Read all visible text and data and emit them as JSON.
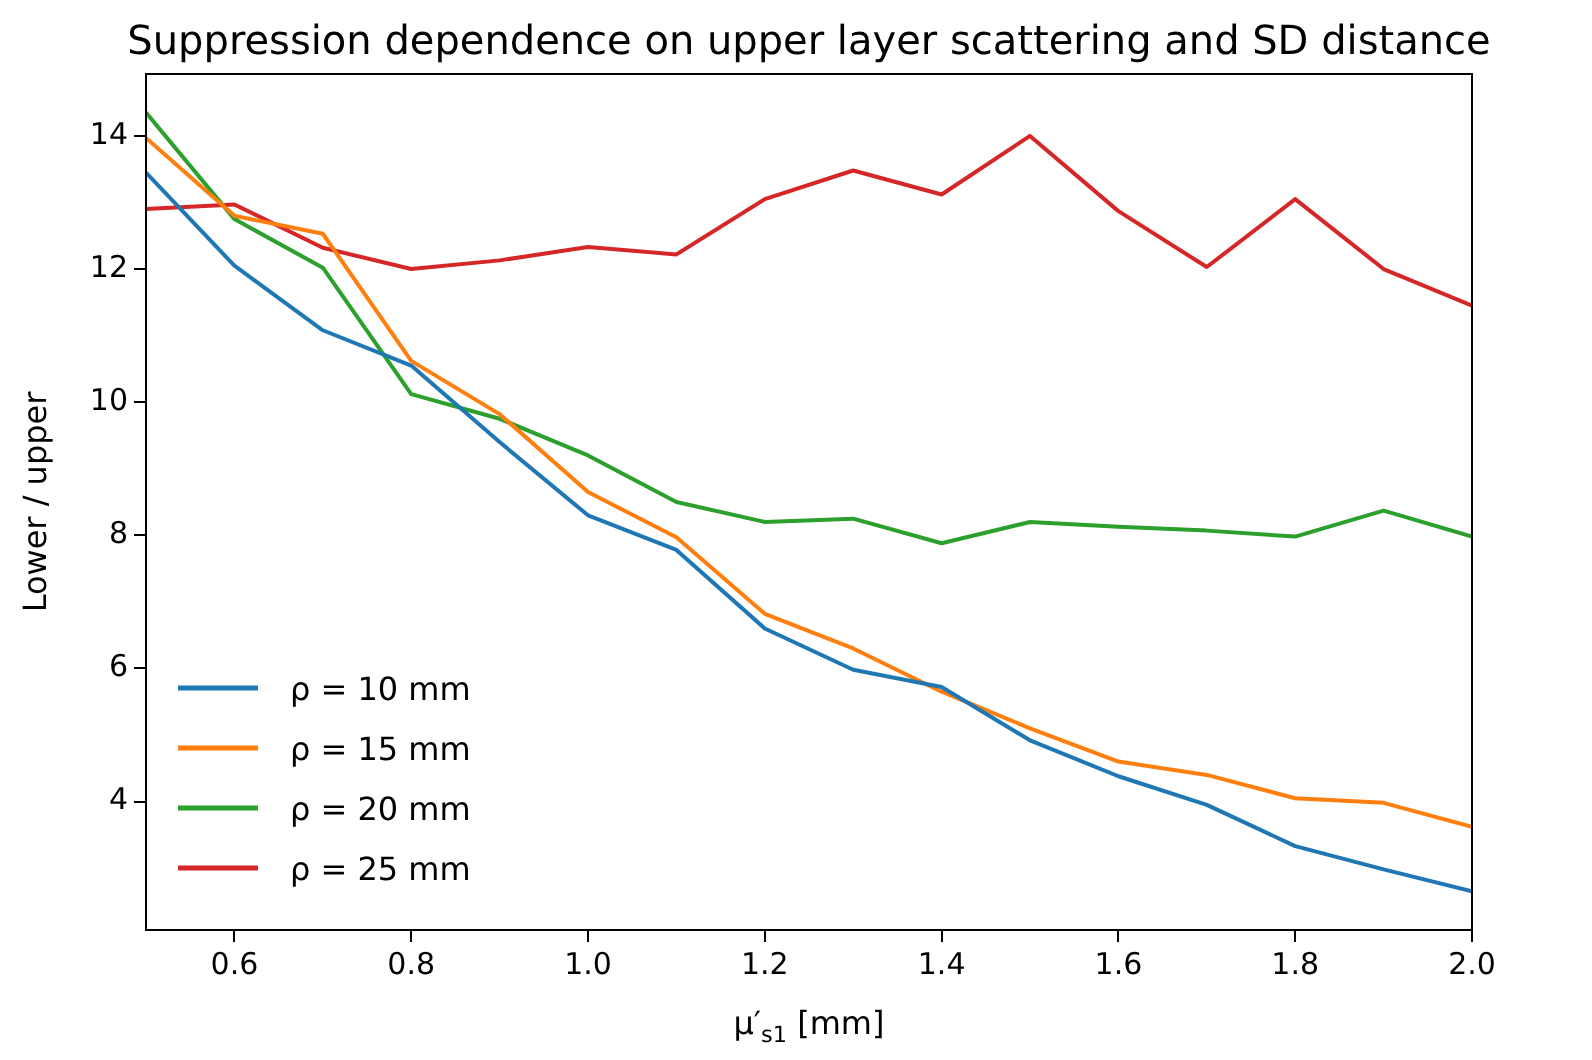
{
  "chart_data": {
    "type": "line",
    "title": "Suppression dependence on upper layer scattering and SD distance",
    "xlabel": "μ′$_{s1}$ [mm]",
    "ylabel": "Lower / upper",
    "x": [
      0.5,
      0.6,
      0.7,
      0.8,
      0.9,
      1.0,
      1.1,
      1.2,
      1.3,
      1.4,
      1.5,
      1.6,
      1.7,
      1.8,
      1.9,
      2.0
    ],
    "series": [
      {
        "name": "ρ = 10 mm",
        "color": "#1f77b4",
        "values": [
          13.45,
          12.05,
          11.08,
          10.55,
          9.4,
          8.3,
          7.78,
          6.6,
          5.98,
          5.72,
          4.92,
          4.38,
          3.95,
          3.33,
          2.98,
          2.65
        ]
      },
      {
        "name": "ρ = 15 mm",
        "color": "#ff7f0e",
        "values": [
          13.97,
          12.8,
          12.53,
          10.62,
          9.82,
          8.65,
          7.97,
          6.82,
          6.3,
          5.65,
          5.1,
          4.6,
          4.4,
          4.05,
          3.98,
          3.62
        ]
      },
      {
        "name": "ρ = 20 mm",
        "color": "#2ca02c",
        "values": [
          14.35,
          12.75,
          12.02,
          10.12,
          9.75,
          9.2,
          8.5,
          8.2,
          8.25,
          7.88,
          8.2,
          8.13,
          8.07,
          7.98,
          8.37,
          7.98
        ]
      },
      {
        "name": "ρ = 25 mm",
        "color": "#d62728",
        "values": [
          12.9,
          12.97,
          12.32,
          12.0,
          12.13,
          12.33,
          12.22,
          13.05,
          13.48,
          13.12,
          14.0,
          12.87,
          12.03,
          13.05,
          12.0,
          11.45
        ]
      }
    ],
    "xlim": [
      0.5,
      2.0
    ],
    "ylim": [
      2.07,
      14.93
    ],
    "xticks": [
      {
        "value": 0.6,
        "label": "0.6"
      },
      {
        "value": 0.8,
        "label": "0.8"
      },
      {
        "value": 1.0,
        "label": "1.0"
      },
      {
        "value": 1.2,
        "label": "1.2"
      },
      {
        "value": 1.4,
        "label": "1.4"
      },
      {
        "value": 1.6,
        "label": "1.6"
      },
      {
        "value": 1.8,
        "label": "1.8"
      },
      {
        "value": 2.0,
        "label": "2.0"
      }
    ],
    "yticks": [
      4,
      6,
      8,
      10,
      12,
      14
    ],
    "grid": false,
    "legend": "bottom left",
    "marker": "none",
    "line_style": "solid"
  }
}
